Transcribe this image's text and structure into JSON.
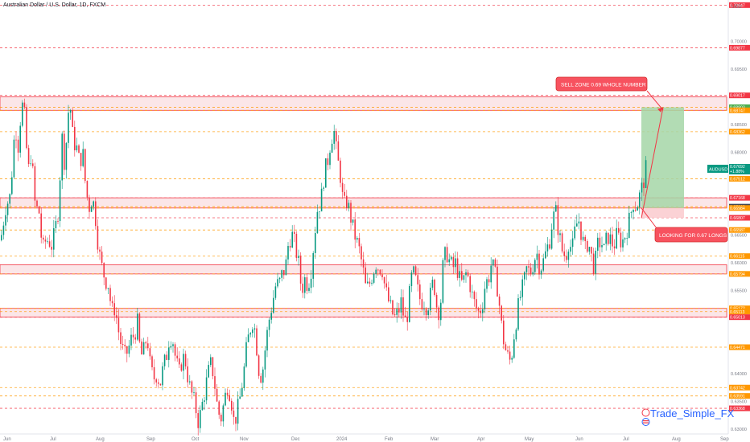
{
  "header": {
    "title": "Australian Dollar / U.S. Dollar, 1D, FXCM",
    "currency_label": "USD",
    "watermark": "Trade_Simple_FX"
  },
  "colors": {
    "bull": "#089981",
    "bear": "#f23645",
    "zone_fill": "#f8d6d8",
    "zone_line": "#f23645",
    "level_orange": "#ff9800",
    "level_red": "#f23645",
    "target_fill": "#a5d6a7",
    "stop_fill": "#fbcdd0",
    "axis_text": "#787b86"
  },
  "chart_data": {
    "type": "candlestick",
    "symbol": "AUDUSD",
    "timeframe": "1D",
    "x_axis_labels": [
      "Jun",
      "Jul",
      "Aug",
      "Sep",
      "Oct",
      "Nov",
      "Dec",
      "2024",
      "Feb",
      "Mar",
      "Apr",
      "May",
      "Jun",
      "Jul",
      "Aug",
      "Sep"
    ],
    "y_axis_ticks": [
      "0.70000",
      "0.69500",
      "0.68500",
      "0.68000",
      "0.66500",
      "0.66000",
      "0.65500",
      "0.64000",
      "0.63500",
      "0.63000"
    ],
    "ylim": [
      0.6289,
      0.7071
    ],
    "price_labels": [
      {
        "value": 0.70647,
        "text": "0.70647",
        "color": "#f23645"
      },
      {
        "value": 0.69877,
        "text": "0.69877",
        "color": "#f23645"
      },
      {
        "value": 0.69017,
        "text": "0.69017",
        "color": "#f23645"
      },
      {
        "value": 0.68803,
        "text": "0.68803",
        "color": "#4caf50"
      },
      {
        "value": 0.68747,
        "text": "0.68747",
        "color": "#ff9800"
      },
      {
        "value": 0.68362,
        "text": "0.68362",
        "color": "#ff9800"
      },
      {
        "value": 0.67692,
        "text": "0.67692",
        "color": "#089981",
        "extra": "+1.88%"
      },
      {
        "value": 0.67512,
        "text": "0.67512",
        "color": "#ff9800"
      },
      {
        "value": 0.67168,
        "text": "0.67168",
        "color": "#f23645"
      },
      {
        "value": 0.67008,
        "text": "0.67008",
        "color": "#434651"
      },
      {
        "value": 0.66984,
        "text": "0.66984",
        "color": "#ff9800"
      },
      {
        "value": 0.66807,
        "text": "0.66807",
        "color": "#f23645"
      },
      {
        "value": 0.66587,
        "text": "0.66587",
        "color": "#ff9800"
      },
      {
        "value": 0.66115,
        "text": "0.66115",
        "color": "#ff9800"
      },
      {
        "value": 0.65794,
        "text": "0.65794",
        "color": "#ff9800"
      },
      {
        "value": 0.65172,
        "text": "0.65172",
        "color": "#ff9800"
      },
      {
        "value": 0.65113,
        "text": "0.65113",
        "color": "#ff9800"
      },
      {
        "value": 0.65013,
        "text": "0.65013",
        "color": "#f23645"
      },
      {
        "value": 0.64471,
        "text": "0.64471",
        "color": "#ff9800"
      },
      {
        "value": 0.63742,
        "text": "0.63742",
        "color": "#ff9800"
      },
      {
        "value": 0.63591,
        "text": "0.63591",
        "color": "#ff9800"
      },
      {
        "value": 0.63368,
        "text": "0.63368",
        "color": "#f23645"
      }
    ],
    "symbol_tag": "AUDUSD",
    "zones": [
      {
        "top": 0.6899,
        "bottom": 0.68747
      },
      {
        "top": 0.67168,
        "bottom": 0.66984
      },
      {
        "top": 0.6596,
        "bottom": 0.65794
      },
      {
        "top": 0.65172,
        "bottom": 0.65013
      }
    ],
    "position": {
      "entry": 0.66984,
      "target": 0.68803,
      "stop": 0.66807
    },
    "annotations": [
      {
        "text": "SELL ZONE 0.69 WHOLE NUMBER"
      },
      {
        "text": "LOOKING FOR 0.67 LONGS"
      }
    ],
    "path": [
      [
        0,
        0.664
      ],
      [
        6,
        0.67
      ],
      [
        12,
        0.672
      ],
      [
        18,
        0.685
      ],
      [
        22,
        0.681
      ],
      [
        26,
        0.689
      ],
      [
        30,
        0.686
      ],
      [
        34,
        0.676
      ],
      [
        38,
        0.68
      ],
      [
        43,
        0.67
      ],
      [
        48,
        0.669
      ],
      [
        52,
        0.662
      ],
      [
        56,
        0.664
      ],
      [
        60,
        0.664
      ],
      [
        64,
        0.663
      ],
      [
        68,
        0.666
      ],
      [
        72,
        0.67
      ],
      [
        76,
        0.683
      ],
      [
        80,
        0.677
      ],
      [
        83,
        0.686
      ],
      [
        86,
        0.689
      ],
      [
        90,
        0.682
      ],
      [
        94,
        0.681
      ],
      [
        98,
        0.678
      ],
      [
        102,
        0.68
      ],
      [
        106,
        0.673
      ],
      [
        110,
        0.67
      ],
      [
        114,
        0.672
      ],
      [
        118,
        0.668
      ],
      [
        122,
        0.662
      ],
      [
        126,
        0.659
      ],
      [
        130,
        0.657
      ],
      [
        134,
        0.656
      ],
      [
        138,
        0.651
      ],
      [
        142,
        0.652
      ],
      [
        146,
        0.648
      ],
      [
        150,
        0.645
      ],
      [
        154,
        0.643
      ],
      [
        158,
        0.644
      ],
      [
        162,
        0.646
      ],
      [
        166,
        0.647
      ],
      [
        170,
        0.649
      ],
      [
        174,
        0.643
      ],
      [
        178,
        0.644
      ],
      [
        182,
        0.647
      ],
      [
        186,
        0.641
      ],
      [
        190,
        0.639
      ],
      [
        194,
        0.64
      ],
      [
        198,
        0.638
      ],
      [
        202,
        0.641
      ],
      [
        206,
        0.643
      ],
      [
        210,
        0.647
      ],
      [
        214,
        0.646
      ],
      [
        218,
        0.642
      ],
      [
        222,
        0.64
      ],
      [
        226,
        0.643
      ],
      [
        230,
        0.642
      ],
      [
        234,
        0.638
      ],
      [
        238,
        0.636
      ],
      [
        242,
        0.634
      ],
      [
        246,
        0.631
      ],
      [
        250,
        0.634
      ],
      [
        254,
        0.637
      ],
      [
        258,
        0.64
      ],
      [
        262,
        0.642
      ],
      [
        266,
        0.638
      ],
      [
        270,
        0.633
      ],
      [
        274,
        0.632
      ],
      [
        278,
        0.635
      ],
      [
        282,
        0.638
      ],
      [
        286,
        0.636
      ],
      [
        290,
        0.631
      ],
      [
        294,
        0.633
      ],
      [
        298,
        0.636
      ],
      [
        302,
        0.64
      ],
      [
        306,
        0.645
      ],
      [
        310,
        0.648
      ],
      [
        314,
        0.65
      ],
      [
        318,
        0.645
      ],
      [
        322,
        0.639
      ],
      [
        326,
        0.641
      ],
      [
        330,
        0.646
      ],
      [
        334,
        0.65
      ],
      [
        338,
        0.653
      ],
      [
        342,
        0.656
      ],
      [
        346,
        0.656
      ],
      [
        350,
        0.658
      ],
      [
        354,
        0.659
      ],
      [
        358,
        0.664
      ],
      [
        362,
        0.665
      ],
      [
        366,
        0.663
      ],
      [
        370,
        0.66
      ],
      [
        374,
        0.655
      ],
      [
        378,
        0.657
      ],
      [
        382,
        0.656
      ],
      [
        386,
        0.659
      ],
      [
        390,
        0.665
      ],
      [
        394,
        0.67
      ],
      [
        398,
        0.671
      ],
      [
        402,
        0.676
      ],
      [
        406,
        0.678
      ],
      [
        410,
        0.682
      ],
      [
        414,
        0.684
      ],
      [
        418,
        0.679
      ],
      [
        422,
        0.676
      ],
      [
        426,
        0.67
      ],
      [
        430,
        0.671
      ],
      [
        434,
        0.669
      ],
      [
        438,
        0.666
      ],
      [
        442,
        0.664
      ],
      [
        446,
        0.662
      ],
      [
        450,
        0.659
      ],
      [
        454,
        0.655
      ],
      [
        458,
        0.656
      ],
      [
        462,
        0.658
      ],
      [
        466,
        0.66
      ],
      [
        470,
        0.659
      ],
      [
        474,
        0.659
      ],
      [
        478,
        0.655
      ],
      [
        482,
        0.653
      ],
      [
        486,
        0.651
      ],
      [
        490,
        0.65
      ],
      [
        494,
        0.651
      ],
      [
        498,
        0.653
      ],
      [
        502,
        0.649
      ],
      [
        506,
        0.651
      ],
      [
        510,
        0.657
      ],
      [
        514,
        0.658
      ],
      [
        518,
        0.655
      ],
      [
        522,
        0.653
      ],
      [
        526,
        0.653
      ],
      [
        530,
        0.652
      ],
      [
        534,
        0.654
      ],
      [
        538,
        0.657
      ],
      [
        542,
        0.652
      ],
      [
        546,
        0.651
      ],
      [
        550,
        0.66
      ],
      [
        554,
        0.662
      ],
      [
        558,
        0.66
      ],
      [
        562,
        0.659
      ],
      [
        566,
        0.66
      ],
      [
        570,
        0.657
      ],
      [
        574,
        0.656
      ],
      [
        578,
        0.658
      ],
      [
        582,
        0.657
      ],
      [
        586,
        0.654
      ],
      [
        590,
        0.652
      ],
      [
        594,
        0.651
      ],
      [
        598,
        0.652
      ],
      [
        602,
        0.656
      ],
      [
        606,
        0.657
      ],
      [
        610,
        0.66
      ],
      [
        614,
        0.658
      ],
      [
        618,
        0.655
      ],
      [
        622,
        0.649
      ],
      [
        626,
        0.645
      ],
      [
        630,
        0.643
      ],
      [
        634,
        0.642
      ],
      [
        638,
        0.647
      ],
      [
        642,
        0.651
      ],
      [
        646,
        0.654
      ],
      [
        650,
        0.656
      ],
      [
        654,
        0.659
      ],
      [
        658,
        0.658
      ],
      [
        662,
        0.66
      ],
      [
        666,
        0.662
      ],
      [
        670,
        0.659
      ],
      [
        674,
        0.66
      ],
      [
        678,
        0.662
      ],
      [
        682,
        0.664
      ],
      [
        686,
        0.668
      ],
      [
        690,
        0.669
      ],
      [
        694,
        0.665
      ],
      [
        698,
        0.662
      ],
      [
        702,
        0.661
      ],
      [
        706,
        0.664
      ],
      [
        710,
        0.662
      ],
      [
        714,
        0.666
      ],
      [
        718,
        0.668
      ],
      [
        722,
        0.665
      ],
      [
        726,
        0.662
      ],
      [
        730,
        0.664
      ],
      [
        734,
        0.661
      ],
      [
        738,
        0.659
      ],
      [
        742,
        0.663
      ],
      [
        746,
        0.664
      ],
      [
        750,
        0.662
      ],
      [
        754,
        0.665
      ],
      [
        758,
        0.664
      ],
      [
        762,
        0.663
      ],
      [
        766,
        0.665
      ],
      [
        770,
        0.664
      ],
      [
        774,
        0.664
      ],
      [
        778,
        0.666
      ],
      [
        782,
        0.668
      ],
      [
        786,
        0.671
      ],
      [
        790,
        0.67
      ],
      [
        794,
        0.672
      ],
      [
        798,
        0.674
      ],
      [
        802,
        0.6769
      ]
    ]
  }
}
